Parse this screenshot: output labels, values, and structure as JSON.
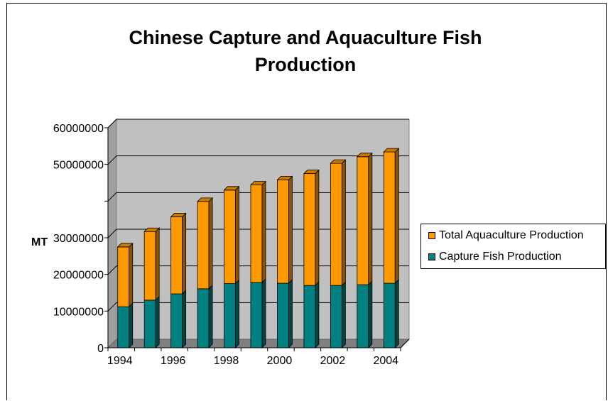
{
  "chart_data": {
    "type": "bar",
    "stacked": true,
    "title": "Chinese Capture and Aquaculture Fish Production",
    "ylabel": "MT",
    "xlabel": "",
    "ylim": [
      0,
      60000000
    ],
    "y_tick_labels": [
      "0",
      "10000000",
      "20000000",
      "30000000",
      "",
      "50000000",
      "60000000"
    ],
    "x_tick_labels": [
      "1994",
      "1996",
      "1998",
      "2000",
      "2002",
      "2004"
    ],
    "categories": [
      "1994",
      "1995",
      "1996",
      "1997",
      "1998",
      "1999",
      "2000",
      "2001",
      "2002",
      "2003",
      "2004"
    ],
    "series": [
      {
        "name": "Capture Fish Production",
        "color": "#008080",
        "values": [
          11200000,
          13000000,
          14700000,
          16100000,
          17500000,
          17800000,
          17600000,
          17000000,
          17000000,
          17200000,
          17600000
        ]
      },
      {
        "name": "Total Aquaculture Production",
        "color": "#FF9900",
        "values": [
          16300000,
          18700000,
          21000000,
          23800000,
          25500000,
          26600000,
          28200000,
          30500000,
          33300000,
          34900000,
          35800000
        ]
      }
    ],
    "legend_position": "right",
    "grid": true
  }
}
